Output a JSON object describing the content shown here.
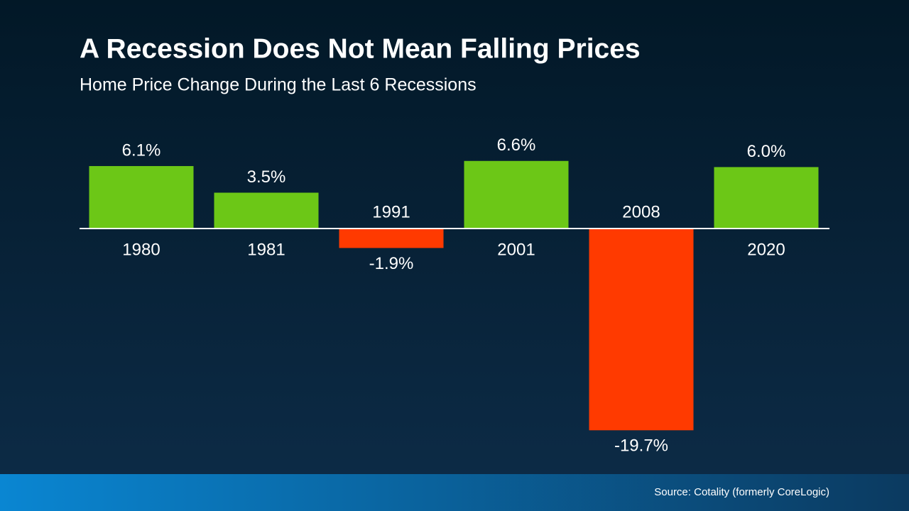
{
  "chart_data": {
    "type": "bar",
    "title": "A Recession Does Not Mean Falling Prices",
    "subtitle": "Home Price Change During the Last 6 Recessions",
    "categories": [
      "1980",
      "1981",
      "1991",
      "2001",
      "2008",
      "2020"
    ],
    "values": [
      6.1,
      3.5,
      -1.9,
      6.6,
      -19.7,
      6.0
    ],
    "value_labels": [
      "6.1%",
      "3.5%",
      "-1.9%",
      "6.6%",
      "-19.7%",
      "6.0%"
    ],
    "colors": [
      "#6cc717",
      "#6cc717",
      "#ff3a00",
      "#6cc717",
      "#ff3a00",
      "#6cc717"
    ],
    "source": "Source: Cotality (formerly CoreLogic)"
  }
}
